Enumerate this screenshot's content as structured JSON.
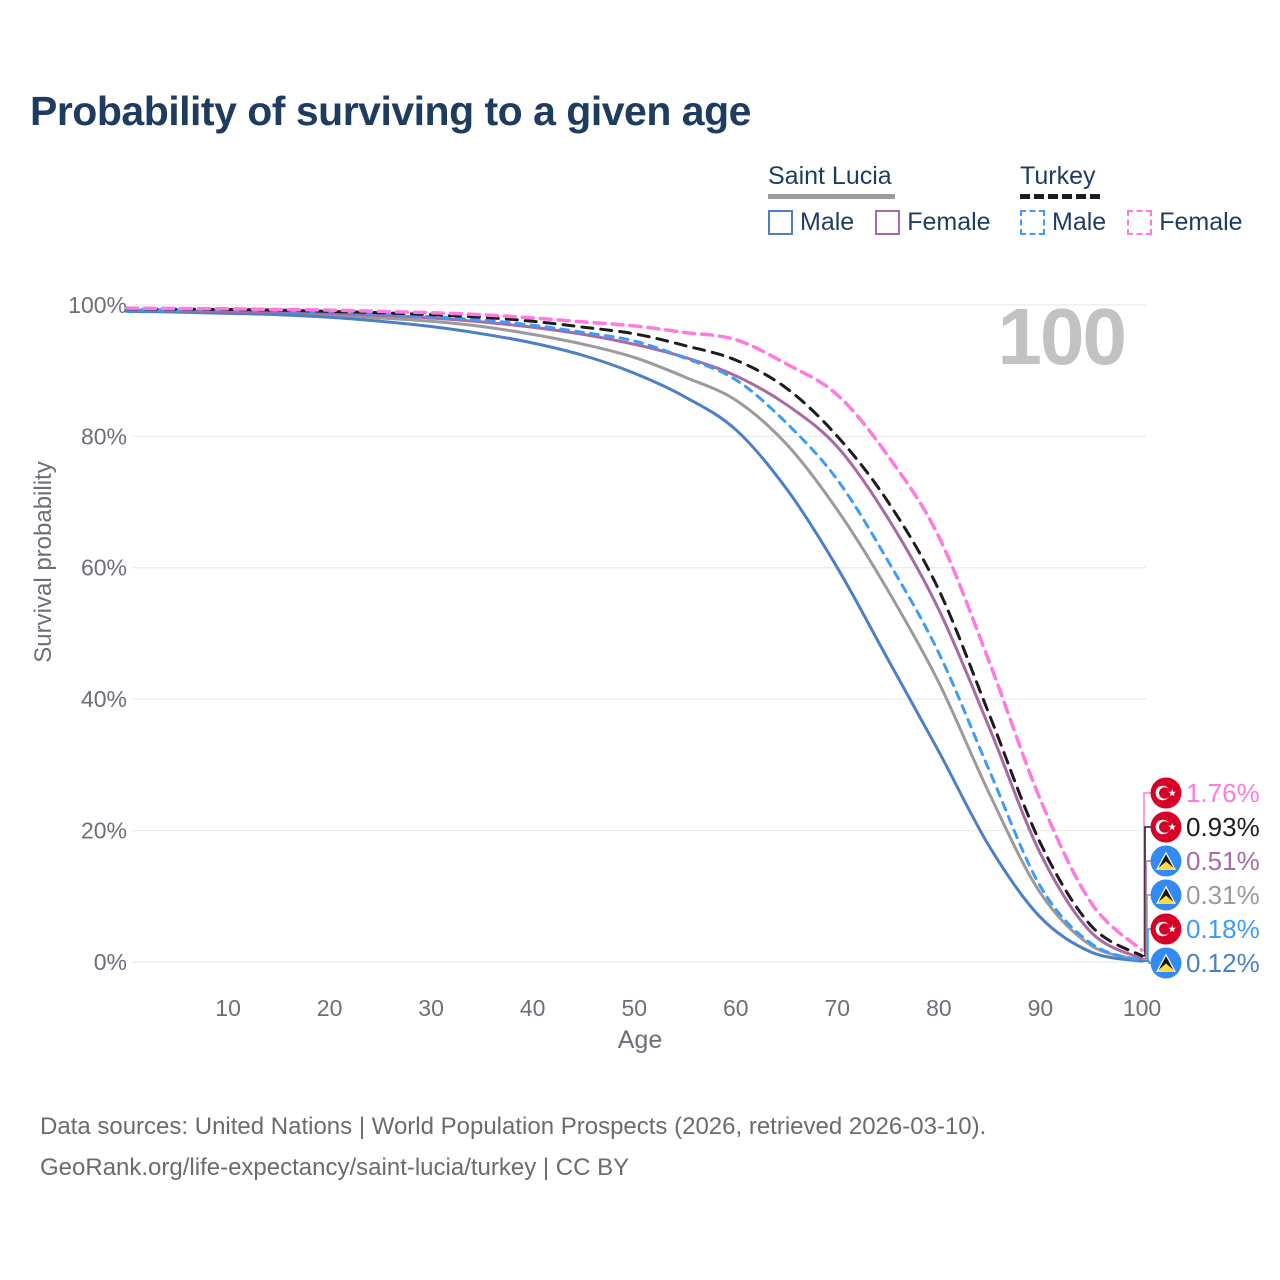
{
  "header": {
    "title": "Probability of surviving to a given age"
  },
  "legend": {
    "groups": [
      {
        "country": "Saint Lucia",
        "style": "solid",
        "underline_color": "#9b9b9b",
        "underline_width": 127,
        "items": [
          {
            "label": "Male",
            "color": "#4d7fc6"
          },
          {
            "label": "Female",
            "color": "#a76aa5"
          }
        ]
      },
      {
        "country": "Turkey",
        "style": "dashed",
        "underline_color": "#1c1c1c",
        "underline_width": 80,
        "items": [
          {
            "label": "Male",
            "color": "#3f9bf8"
          },
          {
            "label": "Female",
            "color": "#ff7ade"
          }
        ]
      }
    ]
  },
  "watermark": "100",
  "theme": {
    "gridline": "#ebebf0",
    "tick_text": "#6e6e78",
    "connector_width": 1.5
  },
  "flags": {
    "turkey": {
      "bg": "#d80027",
      "emblem": "#ffffff"
    },
    "saint-lucia": {
      "bg": "#338af3",
      "white": "#f5f5f5",
      "black": "#141414",
      "yellow": "#ffda44"
    }
  },
  "chart_data": {
    "type": "line",
    "title": "Probability of surviving to a given age",
    "xlabel": "Age",
    "ylabel": "Survival probability",
    "xlim": [
      0,
      100
    ],
    "ylim": [
      0,
      100
    ],
    "grid": true,
    "x_ticks": [
      10,
      20,
      30,
      40,
      50,
      60,
      70,
      80,
      90,
      100
    ],
    "y_ticks": [
      {
        "value": 0,
        "label": "0%"
      },
      {
        "value": 20,
        "label": "20%"
      },
      {
        "value": 40,
        "label": "40%"
      },
      {
        "value": 60,
        "label": "60%"
      },
      {
        "value": 80,
        "label": "80%"
      },
      {
        "value": 100,
        "label": "100%"
      }
    ],
    "ages": [
      0,
      5,
      10,
      15,
      20,
      25,
      30,
      35,
      40,
      45,
      50,
      55,
      60,
      65,
      70,
      75,
      80,
      85,
      90,
      95,
      100
    ],
    "series": [
      {
        "id": "saint-lucia-both",
        "name": "Saint Lucia Both sexes",
        "country": "saint-lucia",
        "sex": "both",
        "color": "#9b9b9b",
        "dash": null,
        "width": 3,
        "end_label": "0.31%",
        "values": [
          99.1,
          99.0,
          98.9,
          98.7,
          98.4,
          98.0,
          97.5,
          96.7,
          95.5,
          94.0,
          92.0,
          89.0,
          85.5,
          78.8,
          68.8,
          56.5,
          42.5,
          25.5,
          10.5,
          2.5,
          0.31
        ]
      },
      {
        "id": "saint-lucia-male",
        "name": "Saint Lucia Male",
        "country": "saint-lucia",
        "sex": "male",
        "color": "#4d7fc6",
        "dash": null,
        "width": 3,
        "end_label": "0.12%",
        "values": [
          99.0,
          98.9,
          98.7,
          98.5,
          98.1,
          97.5,
          96.7,
          95.6,
          94.2,
          92.3,
          89.6,
          86.0,
          81.0,
          72.0,
          60.0,
          46.0,
          32.0,
          17.5,
          6.8,
          1.5,
          0.12
        ]
      },
      {
        "id": "saint-lucia-female",
        "name": "Saint Lucia Female",
        "country": "saint-lucia",
        "sex": "female",
        "color": "#a76aa5",
        "dash": null,
        "width": 3,
        "end_label": "0.51%",
        "values": [
          99.2,
          99.1,
          99.0,
          98.9,
          98.7,
          98.4,
          98.0,
          97.4,
          96.6,
          95.5,
          94.0,
          92.0,
          89.2,
          84.8,
          78.4,
          67.5,
          53.6,
          35.5,
          16.5,
          4.5,
          0.51
        ]
      },
      {
        "id": "turkey-male",
        "name": "Turkey Male",
        "country": "turkey",
        "sex": "male",
        "color": "#3f9bf8",
        "dash": "8 7",
        "width": 3,
        "end_label": "0.18%",
        "values": [
          99.3,
          99.25,
          99.2,
          99.1,
          98.9,
          98.6,
          98.2,
          97.7,
          96.9,
          95.8,
          94.5,
          91.9,
          88.6,
          82.0,
          73.4,
          61.0,
          47.0,
          29.0,
          11.5,
          2.8,
          0.18
        ]
      },
      {
        "id": "turkey-both",
        "name": "Turkey Both sexes",
        "country": "turkey",
        "sex": "both",
        "color": "#1c1c1c",
        "dash": "11 8",
        "width": 3,
        "end_label": "0.93%",
        "values": [
          99.4,
          99.35,
          99.3,
          99.2,
          99.0,
          98.8,
          98.5,
          98.1,
          97.5,
          96.6,
          95.6,
          93.8,
          91.6,
          87.3,
          80.0,
          70.0,
          56.6,
          37.5,
          18.1,
          5.5,
          0.93
        ]
      },
      {
        "id": "turkey-female",
        "name": "Turkey Female",
        "country": "turkey",
        "sex": "female",
        "color": "#ff7ade",
        "dash": "11 7",
        "width": 3.5,
        "end_label": "1.76%",
        "values": [
          99.5,
          99.45,
          99.4,
          99.3,
          99.2,
          99.0,
          98.8,
          98.5,
          98.0,
          97.4,
          96.8,
          95.8,
          94.7,
          91.0,
          86.3,
          77.0,
          64.7,
          45.5,
          24.7,
          9.0,
          1.76
        ]
      }
    ]
  },
  "footer": {
    "line1": "Data sources: United Nations | World Population Prospects (2026, retrieved 2026-03-10).",
    "line2": "GeoRank.org/life-expectancy/saint-lucia/turkey | CC BY"
  }
}
